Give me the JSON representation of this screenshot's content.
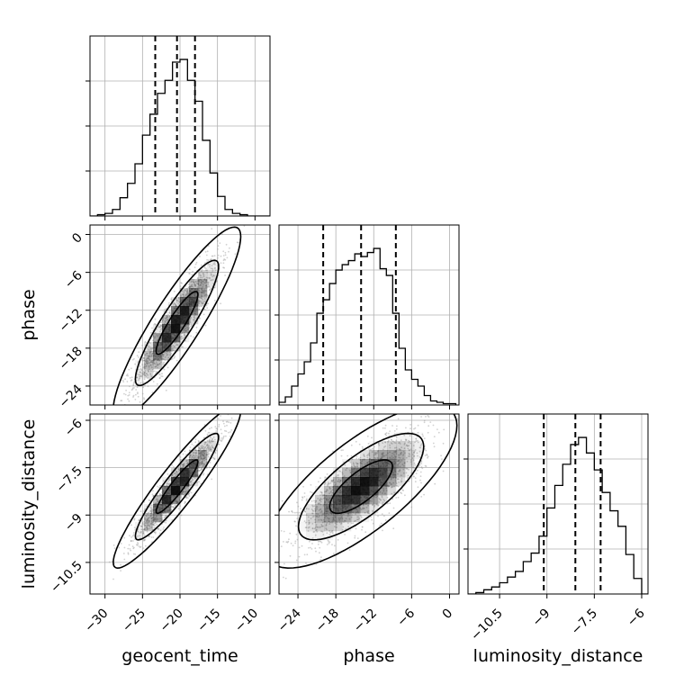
{
  "chart_data": [
    {
      "panel": "hist-geocent_time",
      "type": "bar",
      "parameter": "geocent_time",
      "xlim": [
        -32,
        -8
      ],
      "x_ticks": [
        -30,
        -25,
        -20,
        -15,
        -10
      ],
      "bin_edges": [
        -32,
        -31,
        -30,
        -29,
        -28,
        -27,
        -26,
        -25,
        -24,
        -23,
        -22,
        -21,
        -20,
        -19,
        -18,
        -17,
        -16,
        -15,
        -14,
        -13,
        -12,
        -11,
        -10,
        -9,
        -8
      ],
      "counts": [
        0,
        5,
        10,
        25,
        70,
        125,
        200,
        310,
        390,
        470,
        520,
        590,
        600,
        520,
        440,
        290,
        165,
        75,
        25,
        10,
        5,
        0,
        0,
        0
      ],
      "quantiles": [
        -23.3,
        -20.4,
        -18.0
      ],
      "grid": true
    },
    {
      "panel": "hist-phase",
      "type": "bar",
      "parameter": "phase",
      "xlim": [
        -27,
        1.5
      ],
      "x_ticks": [
        -24,
        -18,
        -12,
        -6,
        0
      ],
      "bin_edges": [
        -27,
        -26,
        -25,
        -24,
        -23,
        -22,
        -21,
        -20,
        -19,
        -18,
        -17,
        -16,
        -15,
        -14,
        -13,
        -12,
        -11,
        -10,
        -9,
        -8,
        -7,
        -6,
        -5,
        -4,
        -3,
        -2,
        -1,
        0,
        1
      ],
      "counts": [
        10,
        30,
        70,
        115,
        160,
        230,
        340,
        390,
        450,
        500,
        520,
        535,
        560,
        550,
        565,
        580,
        505,
        480,
        340,
        210,
        130,
        95,
        70,
        35,
        15,
        10,
        5,
        5
      ],
      "quantiles": [
        -20.0,
        -14.0,
        -8.5
      ],
      "grid": true
    },
    {
      "panel": "hist-luminosity_distance",
      "type": "bar",
      "parameter": "luminosity_distance",
      "xlim": [
        -11.5,
        -5.8
      ],
      "x_ticks": [
        -10.5,
        -9.0,
        -7.5,
        -6.0
      ],
      "bin_edges": [
        -11.5,
        -11.25,
        -11.0,
        -10.75,
        -10.5,
        -10.25,
        -10.0,
        -9.75,
        -9.5,
        -9.25,
        -9.0,
        -8.75,
        -8.5,
        -8.25,
        -8.0,
        -7.75,
        -7.5,
        -7.25,
        -7.0,
        -6.75,
        -6.5,
        -6.25,
        -6.0,
        -5.75
      ],
      "counts": [
        0,
        5,
        15,
        25,
        40,
        60,
        80,
        115,
        145,
        205,
        305,
        385,
        460,
        530,
        555,
        500,
        440,
        360,
        295,
        240,
        140,
        55,
        0
      ],
      "quantiles": [
        -9.1,
        -8.1,
        -7.3
      ],
      "grid": true
    },
    {
      "panel": "2d-geocent_time-phase",
      "type": "scatter",
      "x_parameter": "geocent_time",
      "y_parameter": "phase",
      "xlim": [
        -32,
        -8
      ],
      "ylim": [
        -27,
        1.5
      ],
      "x_ticks": [
        -30,
        -25,
        -20,
        -15,
        -10
      ],
      "y_ticks": [
        -24,
        -18,
        -12,
        -6,
        0
      ],
      "center": [
        -20.4,
        -14.0
      ],
      "std": [
        2.8,
        5.0
      ],
      "correlation": 0.9,
      "contour_levels": [
        0.39,
        0.86,
        0.99
      ],
      "grid": true
    },
    {
      "panel": "2d-geocent_time-luminosity_distance",
      "type": "scatter",
      "x_parameter": "geocent_time",
      "y_parameter": "luminosity_distance",
      "xlim": [
        -32,
        -8
      ],
      "ylim": [
        -11.5,
        -5.8
      ],
      "x_ticks": [
        -30,
        -25,
        -20,
        -15,
        -10
      ],
      "y_ticks": [
        -10.5,
        -9.0,
        -7.5,
        -6.0
      ],
      "center": [
        -20.4,
        -8.1
      ],
      "std": [
        2.8,
        0.85
      ],
      "correlation": 0.93,
      "contour_levels": [
        0.39,
        0.86,
        0.99
      ],
      "grid": true
    },
    {
      "panel": "2d-phase-luminosity_distance",
      "type": "scatter",
      "x_parameter": "phase",
      "y_parameter": "luminosity_distance",
      "xlim": [
        -27,
        1.5
      ],
      "ylim": [
        -11.5,
        -5.8
      ],
      "x_ticks": [
        -24,
        -18,
        -12,
        -6,
        0
      ],
      "y_ticks": [
        -10.5,
        -9.0,
        -7.5,
        -6.0
      ],
      "center": [
        -14.0,
        -8.1
      ],
      "std": [
        5.0,
        0.85
      ],
      "correlation": 0.75,
      "contour_levels": [
        0.39,
        0.86,
        0.99
      ],
      "grid": true
    }
  ],
  "labels": {
    "x_bottom_left": "geocent_time",
    "x_bottom_middle": "phase",
    "x_bottom_right": "luminosity_distance",
    "y_middle": "phase",
    "y_bottom": "luminosity_distance"
  },
  "colors": {
    "density": "#000000",
    "scatter": "#9a9a9a",
    "grid": "#b0b0b0",
    "frame": "#000000"
  }
}
